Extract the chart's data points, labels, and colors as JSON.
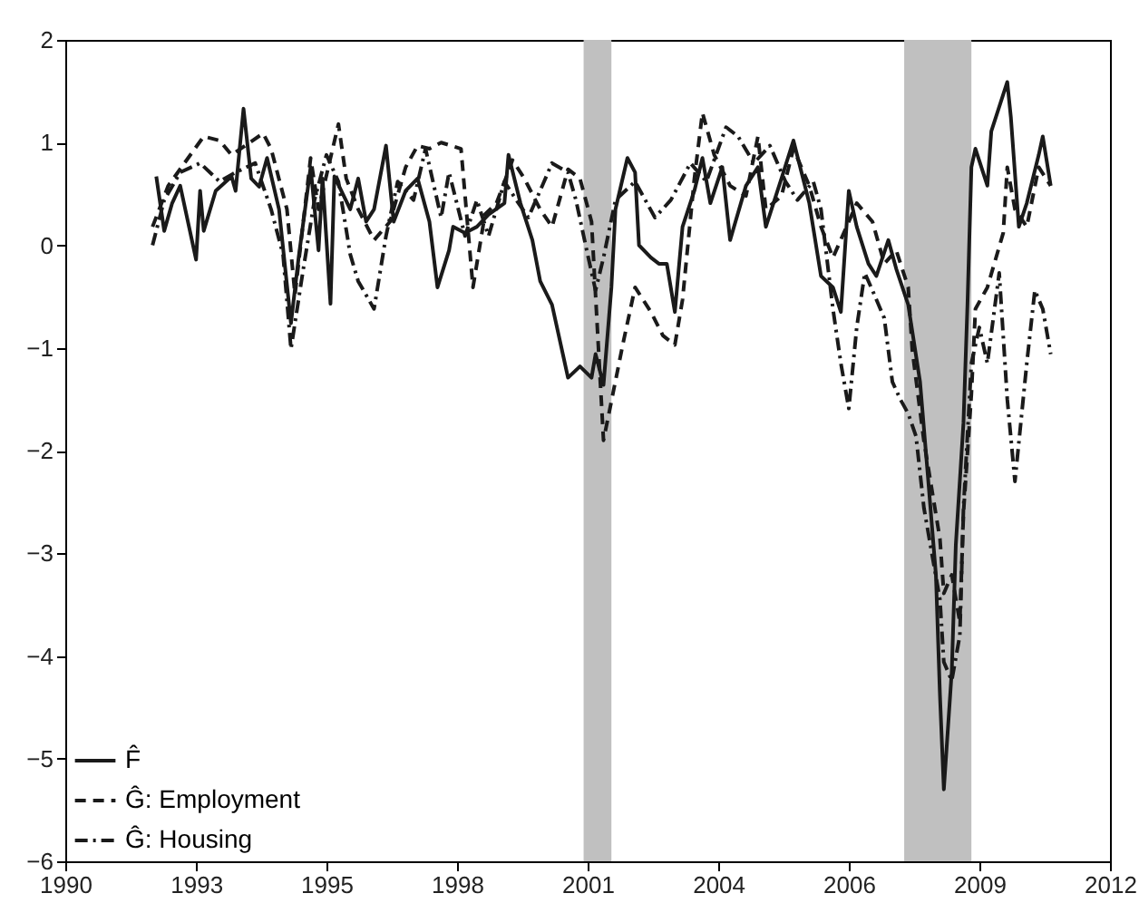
{
  "chart_data": {
    "type": "line",
    "xlim": [
      "1990-04",
      "2012-04"
    ],
    "xticks": [
      {
        "value": "1990-04",
        "label": "1990"
      },
      {
        "value": "1993-01",
        "label": "1993"
      },
      {
        "value": "1995-10",
        "label": "1995"
      },
      {
        "value": "1998-07",
        "label": "1998"
      },
      {
        "value": "2001-04",
        "label": "2001"
      },
      {
        "value": "2004-01",
        "label": "2004"
      },
      {
        "value": "2006-10",
        "label": "2006"
      },
      {
        "value": "2009-07",
        "label": "2009"
      },
      {
        "value": "2012-04",
        "label": "2012"
      }
    ],
    "ylim": [
      -6,
      2
    ],
    "yticks": [
      -6,
      -5,
      -4,
      -3,
      -2,
      -1,
      0,
      1,
      2
    ],
    "legend": "bottom left",
    "bands": [
      {
        "axis": "x",
        "from": "2001-03",
        "to": "2001-10",
        "color": "#c0c0c0"
      },
      {
        "axis": "x",
        "from": "2007-12",
        "to": "2009-05",
        "color": "#c0c0c0"
      }
    ],
    "series": [
      {
        "name": "F̂",
        "color": "#1a1a1a",
        "line_style": "solid",
        "x": [
          "1992-03",
          "1992-05",
          "1992-07",
          "1992-09",
          "1993-01",
          "1993-02",
          "1993-03",
          "1993-06",
          "1993-10",
          "1993-11",
          "1994-01",
          "1994-03",
          "1994-05",
          "1994-07",
          "1994-10",
          "1995-01",
          "1995-03",
          "1995-06",
          "1995-08",
          "1995-09",
          "1995-11",
          "1995-12",
          "1996-04",
          "1996-06",
          "1996-08",
          "1996-10",
          "1997-01",
          "1997-03",
          "1997-06",
          "1997-09",
          "1997-12",
          "1998-02",
          "1998-05",
          "1998-06",
          "1998-09",
          "1998-12",
          "1999-03",
          "1999-07",
          "1999-08",
          "1999-11",
          "2000-02",
          "2000-04",
          "2000-07",
          "2000-10",
          "2000-11",
          "2001-02",
          "2001-05",
          "2001-06",
          "2001-08",
          "2001-10",
          "2001-11",
          "2002-02",
          "2002-04",
          "2002-05",
          "2002-08",
          "2002-10",
          "2002-12",
          "2003-02",
          "2003-04",
          "2003-07",
          "2003-09",
          "2003-11",
          "2004-02",
          "2004-04",
          "2004-08",
          "2004-11",
          "2005-01",
          "2005-05",
          "2005-08",
          "2005-12",
          "2006-03",
          "2006-06",
          "2006-08",
          "2006-10",
          "2006-12",
          "2007-03",
          "2007-05",
          "2007-08",
          "2007-10",
          "2008-01",
          "2008-04",
          "2008-06",
          "2008-08",
          "2008-09",
          "2008-10",
          "2008-12",
          "2009-01",
          "2009-03",
          "2009-04",
          "2009-05",
          "2009-06",
          "2009-09",
          "2009-10",
          "2010-01",
          "2010-02",
          "2010-03",
          "2010-05",
          "2010-07",
          "2010-10",
          "2010-11",
          "2011-01"
        ],
        "values": [
          0.67,
          0.14,
          0.41,
          0.58,
          -0.14,
          0.53,
          0.14,
          0.53,
          0.67,
          0.53,
          1.33,
          0.65,
          0.57,
          0.85,
          0.35,
          -0.76,
          -0.12,
          0.76,
          -0.05,
          0.65,
          -0.57,
          0.67,
          0.35,
          0.65,
          0.23,
          0.35,
          0.97,
          0.23,
          0.53,
          0.65,
          0.23,
          -0.41,
          -0.05,
          0.18,
          0.12,
          0.18,
          0.3,
          0.41,
          0.88,
          0.41,
          0.05,
          -0.35,
          -0.58,
          -1.11,
          -1.29,
          -1.18,
          -1.29,
          -1.06,
          -1.36,
          -0.41,
          0.35,
          0.85,
          0.71,
          0,
          -0.12,
          -0.18,
          -0.18,
          -0.65,
          0.18,
          0.53,
          0.85,
          0.41,
          0.76,
          0.05,
          0.58,
          0.76,
          0.18,
          0.65,
          1.02,
          0.41,
          -0.3,
          -0.41,
          -0.65,
          0.53,
          0.18,
          -0.18,
          -0.3,
          0.05,
          -0.23,
          -0.58,
          -1.33,
          -2.26,
          -3.21,
          -4.38,
          -5.3,
          -4.15,
          -2.92,
          -1.73,
          -0.57,
          0.76,
          0.94,
          0.58,
          1.11,
          1.47,
          1.59,
          1.24,
          0.18,
          0.41,
          0.88,
          1.06,
          0.58
        ]
      },
      {
        "name": "Ĝ: Employment",
        "color": "#1a1a1a",
        "line_style": "dashed",
        "x": [
          "1992-02",
          "1992-06",
          "1992-11",
          "1993-03",
          "1993-07",
          "1993-10",
          "1994-06",
          "1994-08",
          "1994-12",
          "1995-02",
          "1995-06",
          "1995-08",
          "1996-01",
          "1996-03",
          "1996-06",
          "1996-10",
          "1997-02",
          "1997-06",
          "1997-09",
          "1997-12",
          "1998-03",
          "1998-08",
          "1998-11",
          "1999-02",
          "1999-05",
          "1999-09",
          "1999-12",
          "2000-04",
          "2000-07",
          "2000-11",
          "2001-02",
          "2001-05",
          "2001-08",
          "2002-01",
          "2002-04",
          "2002-08",
          "2002-11",
          "2003-02",
          "2003-04",
          "2003-07",
          "2003-09",
          "2003-12",
          "2004-04",
          "2004-08",
          "2004-11",
          "2005-01",
          "2005-05",
          "2005-08",
          "2005-12",
          "2006-03",
          "2006-06",
          "2006-10",
          "2006-12",
          "2007-04",
          "2007-07",
          "2007-10",
          "2008-01",
          "2008-02",
          "2008-05",
          "2008-09",
          "2008-10",
          "2008-12",
          "2009-02",
          "2009-03",
          "2009-05",
          "2009-06",
          "2009-09",
          "2010-01",
          "2010-02",
          "2010-04",
          "2010-07",
          "2010-10",
          "2011-01"
        ],
        "values": [
          0.18,
          0.58,
          0.85,
          1.06,
          1.02,
          0.88,
          1.09,
          0.94,
          0.35,
          -0.48,
          0.85,
          0.35,
          1.18,
          0.65,
          0.35,
          0.05,
          0.23,
          0.76,
          0.97,
          0.94,
          1.0,
          0.94,
          -0.41,
          0.3,
          0.41,
          0.83,
          0.65,
          0.35,
          0.18,
          0.74,
          0.65,
          0.23,
          -1.9,
          -0.94,
          -0.41,
          -0.65,
          -0.88,
          -0.97,
          -0.53,
          0.65,
          1.29,
          0.88,
          0.58,
          0.48,
          1.06,
          0.35,
          0.48,
          0.94,
          0.58,
          0.18,
          -0.12,
          0.23,
          0.41,
          0.23,
          -0.18,
          -0.05,
          -0.41,
          -1.02,
          -1.91,
          -2.86,
          -3.39,
          -3.21,
          -3.67,
          -2.61,
          -1.45,
          -0.62,
          -0.41,
          0.12,
          0.76,
          0.35,
          0.18,
          0.76,
          0.58
        ]
      },
      {
        "name": "Ĝ: Housing",
        "color": "#1a1a1a",
        "line_style": "dashdot",
        "x": [
          "1992-02",
          "1992-05",
          "1992-09",
          "1993-02",
          "1993-07",
          "1993-11",
          "1994-04",
          "1994-08",
          "1994-11",
          "1995-01",
          "1995-04",
          "1995-07",
          "1995-10",
          "1996-01",
          "1996-04",
          "1996-06",
          "1996-10",
          "1997-01",
          "1997-04",
          "1997-08",
          "1997-11",
          "1998-03",
          "1998-05",
          "1998-09",
          "1998-12",
          "1999-03",
          "1999-07",
          "1999-10",
          "2000-01",
          "2000-05",
          "2000-07",
          "2000-11",
          "2001-01",
          "2001-04",
          "2001-06",
          "2001-08",
          "2001-11",
          "2002-04",
          "2002-09",
          "2003-01",
          "2003-06",
          "2003-10",
          "2004-03",
          "2004-06",
          "2004-10",
          "2005-02",
          "2005-06",
          "2005-09",
          "2006-01",
          "2006-03",
          "2006-06",
          "2006-08",
          "2006-10",
          "2006-12",
          "2007-02",
          "2007-04",
          "2007-07",
          "2007-09",
          "2007-11",
          "2008-01",
          "2008-03",
          "2008-05",
          "2008-09",
          "2008-10",
          "2008-12",
          "2009-02",
          "2009-03",
          "2009-05",
          "2009-07",
          "2009-09",
          "2009-12",
          "2010-02",
          "2010-04",
          "2010-07",
          "2010-09",
          "2010-11",
          "2011-01"
        ],
        "values": [
          0,
          0.44,
          0.71,
          0.8,
          0.62,
          0.71,
          0.8,
          0.35,
          -0.09,
          -1.01,
          -0.27,
          0.44,
          0.88,
          0.62,
          -0.09,
          -0.35,
          -0.62,
          0.09,
          0.62,
          0.44,
          0.94,
          0.27,
          0.71,
          0.09,
          0.44,
          0.09,
          0.62,
          0.44,
          0.27,
          0.62,
          0.8,
          0.71,
          0.44,
          -0.09,
          -0.44,
          -0.12,
          0.44,
          0.62,
          0.27,
          0.44,
          0.8,
          0.62,
          1.15,
          1.06,
          0.8,
          0.97,
          0.62,
          0.44,
          0.62,
          0.35,
          -0.62,
          -1.15,
          -1.59,
          -0.8,
          -0.27,
          -0.44,
          -0.71,
          -1.33,
          -1.5,
          -1.64,
          -1.86,
          -2.56,
          -3.45,
          -4.06,
          -4.24,
          -3.8,
          -2.56,
          -1.15,
          -0.8,
          -1.15,
          -0.27,
          -1.5,
          -2.3,
          -1.15,
          -0.44,
          -0.62,
          -1.06
        ]
      }
    ]
  }
}
